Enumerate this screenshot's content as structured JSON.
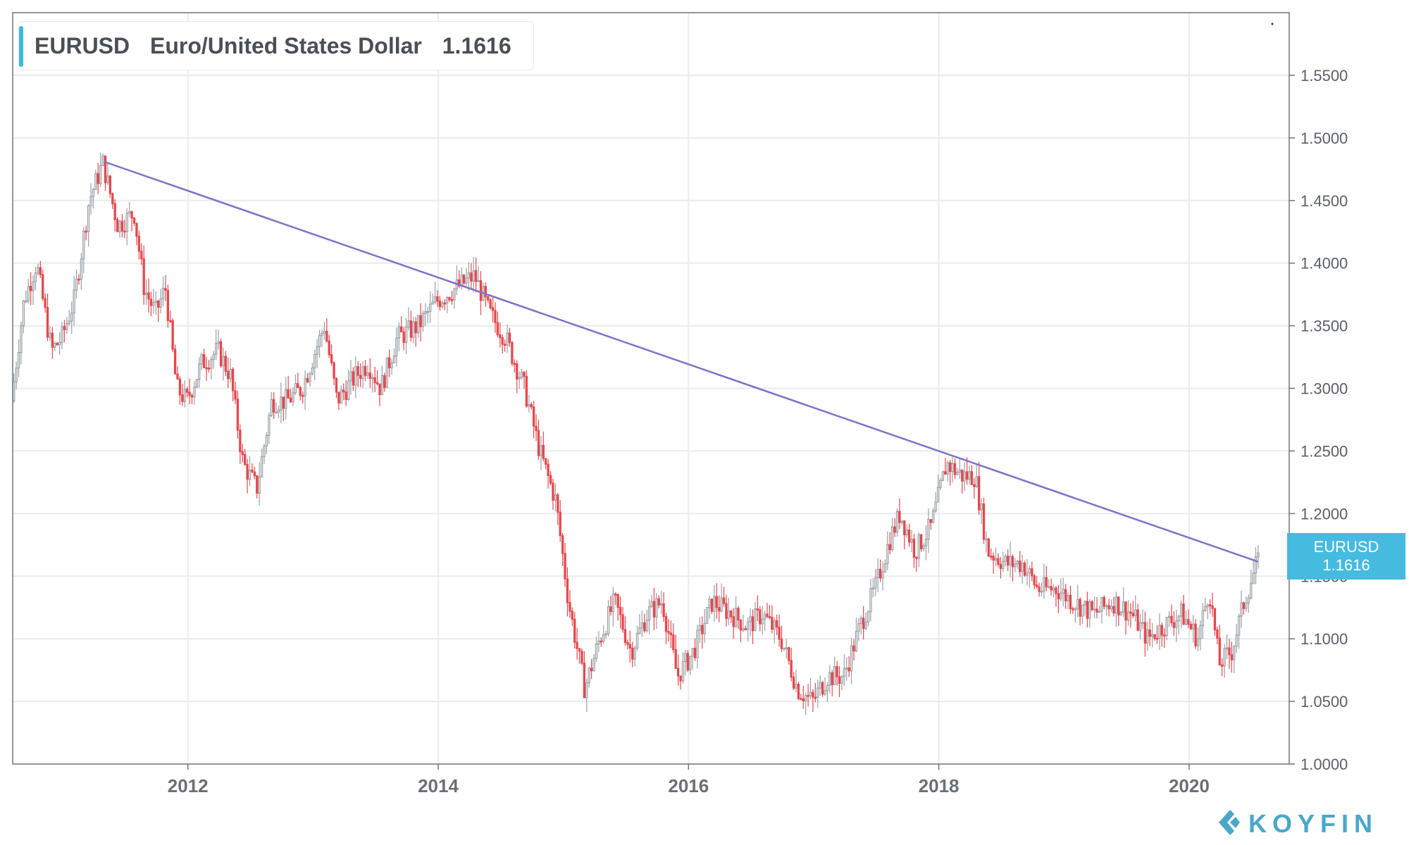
{
  "legend": {
    "symbol": "EURUSD",
    "name": "Euro/United States Dollar",
    "price": "1.1616"
  },
  "price_tag": {
    "symbol": "EURUSD",
    "price": "1.1616"
  },
  "logo": {
    "text": "KOYFIN",
    "icon": "koyfin-chevron-icon"
  },
  "colors": {
    "up": "#9aa0a6",
    "down": "#e8474d",
    "trendline": "#7c73c9",
    "accent": "#45bbe0",
    "grid": "#e9ebef"
  },
  "chart_data": {
    "type": "candlestick",
    "symbol": "EURUSD",
    "title": "Euro/United States Dollar",
    "last_price": 1.1616,
    "x_axis": {
      "range": [
        2010.6,
        2020.8
      ],
      "tick_labels": [
        "2012",
        "2014",
        "2016",
        "2018",
        "2020"
      ],
      "ticks": [
        2012,
        2014,
        2016,
        2018,
        2020
      ]
    },
    "y_axis": {
      "range": [
        1.0,
        1.6
      ],
      "position": "right",
      "tick_labels": [
        "1.0000",
        "1.0500",
        "1.1000",
        "1.1500",
        "1.2000",
        "1.2500",
        "1.3000",
        "1.3500",
        "1.4000",
        "1.4500",
        "1.5000",
        "1.5500"
      ],
      "ticks": [
        1.0,
        1.05,
        1.1,
        1.15,
        1.2,
        1.25,
        1.3,
        1.35,
        1.4,
        1.45,
        1.5,
        1.55
      ]
    },
    "grid": true,
    "trendline": {
      "points": [
        [
          2011.33,
          1.481
        ],
        [
          2020.55,
          1.1616
        ]
      ]
    },
    "price_path": [
      [
        2010.6,
        1.29
      ],
      [
        2010.7,
        1.37
      ],
      [
        2010.8,
        1.4
      ],
      [
        2010.92,
        1.33
      ],
      [
        2011.0,
        1.34
      ],
      [
        2011.1,
        1.37
      ],
      [
        2011.22,
        1.45
      ],
      [
        2011.33,
        1.48
      ],
      [
        2011.45,
        1.43
      ],
      [
        2011.58,
        1.44
      ],
      [
        2011.66,
        1.38
      ],
      [
        2011.75,
        1.36
      ],
      [
        2011.83,
        1.38
      ],
      [
        2011.92,
        1.3
      ],
      [
        2012.0,
        1.29
      ],
      [
        2012.12,
        1.32
      ],
      [
        2012.25,
        1.33
      ],
      [
        2012.35,
        1.31
      ],
      [
        2012.45,
        1.24
      ],
      [
        2012.56,
        1.22
      ],
      [
        2012.68,
        1.29
      ],
      [
        2012.8,
        1.29
      ],
      [
        2012.92,
        1.3
      ],
      [
        2013.1,
        1.35
      ],
      [
        2013.2,
        1.29
      ],
      [
        2013.35,
        1.31
      ],
      [
        2013.45,
        1.32
      ],
      [
        2013.55,
        1.3
      ],
      [
        2013.68,
        1.34
      ],
      [
        2013.85,
        1.35
      ],
      [
        2014.0,
        1.37
      ],
      [
        2014.15,
        1.38
      ],
      [
        2014.3,
        1.39
      ],
      [
        2014.42,
        1.36
      ],
      [
        2014.55,
        1.34
      ],
      [
        2014.7,
        1.3
      ],
      [
        2014.82,
        1.25
      ],
      [
        2014.95,
        1.21
      ],
      [
        2015.05,
        1.13
      ],
      [
        2015.18,
        1.06
      ],
      [
        2015.3,
        1.1
      ],
      [
        2015.42,
        1.13
      ],
      [
        2015.55,
        1.09
      ],
      [
        2015.68,
        1.12
      ],
      [
        2015.8,
        1.13
      ],
      [
        2015.92,
        1.07
      ],
      [
        2016.05,
        1.09
      ],
      [
        2016.2,
        1.13
      ],
      [
        2016.35,
        1.12
      ],
      [
        2016.48,
        1.11
      ],
      [
        2016.6,
        1.12
      ],
      [
        2016.75,
        1.1
      ],
      [
        2016.88,
        1.06
      ],
      [
        2017.0,
        1.05
      ],
      [
        2017.12,
        1.07
      ],
      [
        2017.25,
        1.07
      ],
      [
        2017.38,
        1.11
      ],
      [
        2017.5,
        1.14
      ],
      [
        2017.62,
        1.18
      ],
      [
        2017.7,
        1.2
      ],
      [
        2017.82,
        1.17
      ],
      [
        2017.95,
        1.19
      ],
      [
        2018.07,
        1.24
      ],
      [
        2018.2,
        1.23
      ],
      [
        2018.3,
        1.23
      ],
      [
        2018.4,
        1.17
      ],
      [
        2018.55,
        1.16
      ],
      [
        2018.68,
        1.16
      ],
      [
        2018.8,
        1.14
      ],
      [
        2018.95,
        1.14
      ],
      [
        2019.08,
        1.13
      ],
      [
        2019.25,
        1.12
      ],
      [
        2019.4,
        1.13
      ],
      [
        2019.55,
        1.12
      ],
      [
        2019.68,
        1.1
      ],
      [
        2019.8,
        1.11
      ],
      [
        2019.95,
        1.12
      ],
      [
        2020.08,
        1.1
      ],
      [
        2020.17,
        1.14
      ],
      [
        2020.25,
        1.08
      ],
      [
        2020.35,
        1.09
      ],
      [
        2020.45,
        1.13
      ],
      [
        2020.55,
        1.16
      ]
    ]
  }
}
